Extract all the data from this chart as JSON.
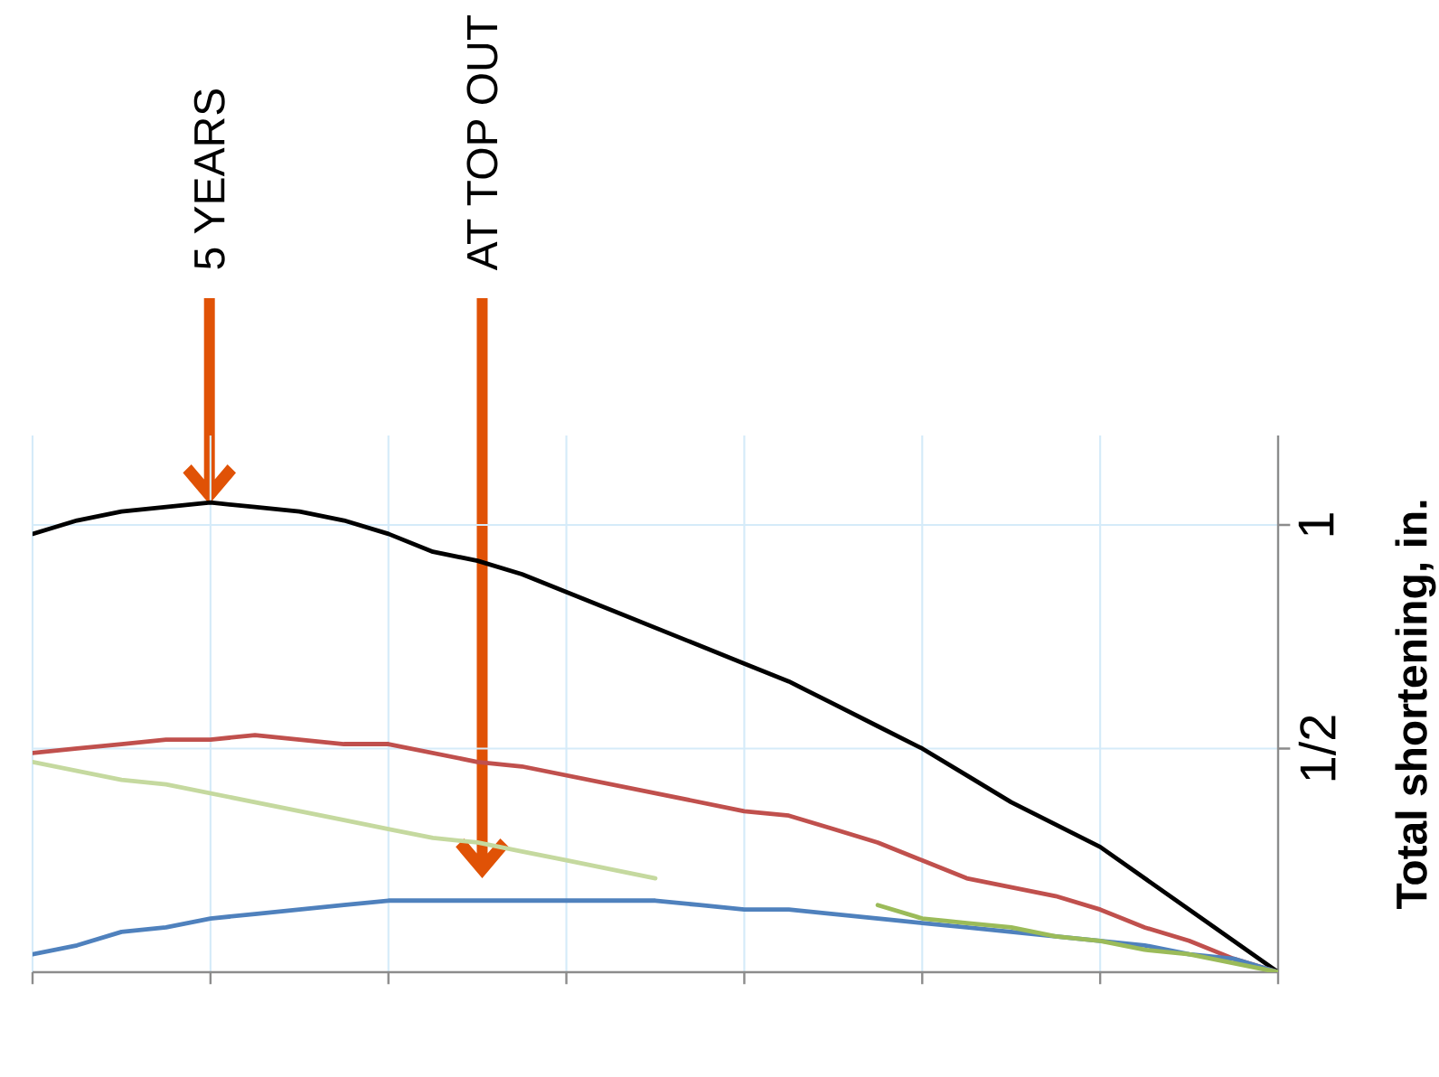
{
  "chart_data": {
    "type": "line",
    "ylabel": "Total shortening, in.",
    "annotations": [
      "5 YEARS",
      "AT TOP OUT"
    ],
    "categories": [
      null,
      null,
      null,
      null,
      null,
      null,
      null,
      null,
      null,
      null,
      null,
      null,
      null,
      null,
      null,
      null,
      null,
      null,
      null,
      null,
      null,
      null,
      null,
      null,
      null,
      null,
      null,
      null,
      null
    ],
    "ylim": [
      0,
      1.2
    ],
    "yticks": [
      {
        "value": 0.5,
        "label": "1/2"
      },
      1
    ],
    "grid": true,
    "tick_labels": "y",
    "series": [
      {
        "color": "#000000",
        "values": [
          0.98,
          1.01,
          1.03,
          1.04,
          1.05,
          1.04,
          1.03,
          1.01,
          0.98,
          0.94,
          0.92,
          0.89,
          0.85,
          0.81,
          0.77,
          0.73,
          0.69,
          0.65,
          0.6,
          0.55,
          0.5,
          0.44,
          0.38,
          0.33,
          0.28,
          0.21,
          0.14,
          0.07,
          0
        ]
      },
      {
        "color": "#c0504d",
        "values": [
          0.49,
          0.5,
          0.51,
          0.52,
          0.52,
          0.53,
          0.52,
          0.51,
          0.51,
          0.49,
          0.47,
          0.46,
          0.44,
          0.42,
          0.4,
          0.38,
          0.36,
          0.35,
          0.32,
          0.29,
          0.25,
          0.21,
          0.19,
          0.17,
          0.14,
          0.1,
          0.07,
          0.03,
          0
        ]
      },
      {
        "color": "#c5d99f",
        "values": [
          0.47,
          0.45,
          0.43,
          0.42,
          0.4,
          0.38,
          0.36,
          0.34,
          0.32,
          0.3,
          0.29,
          0.27,
          0.25,
          0.23,
          0.21,
          null,
          null,
          null,
          null,
          null,
          null,
          null,
          null,
          null,
          null,
          null,
          null,
          null,
          null
        ]
      },
      {
        "color": "#4f81bd",
        "values": [
          0.04,
          0.06,
          0.09,
          0.1,
          0.12,
          0.13,
          0.14,
          0.15,
          0.16,
          0.16,
          0.16,
          0.16,
          0.16,
          0.16,
          0.16,
          0.15,
          0.14,
          0.14,
          0.13,
          0.12,
          0.11,
          0.1,
          0.09,
          0.08,
          0.07,
          0.06,
          0.04,
          0.03,
          0
        ]
      },
      {
        "color": "#9bbb59",
        "values": [
          null,
          null,
          null,
          null,
          null,
          null,
          null,
          null,
          null,
          null,
          null,
          null,
          null,
          null,
          null,
          null,
          null,
          null,
          null,
          0.15,
          0.12,
          0.11,
          0.1,
          0.08,
          0.07,
          0.05,
          0.04,
          0.02,
          0
        ]
      }
    ]
  }
}
